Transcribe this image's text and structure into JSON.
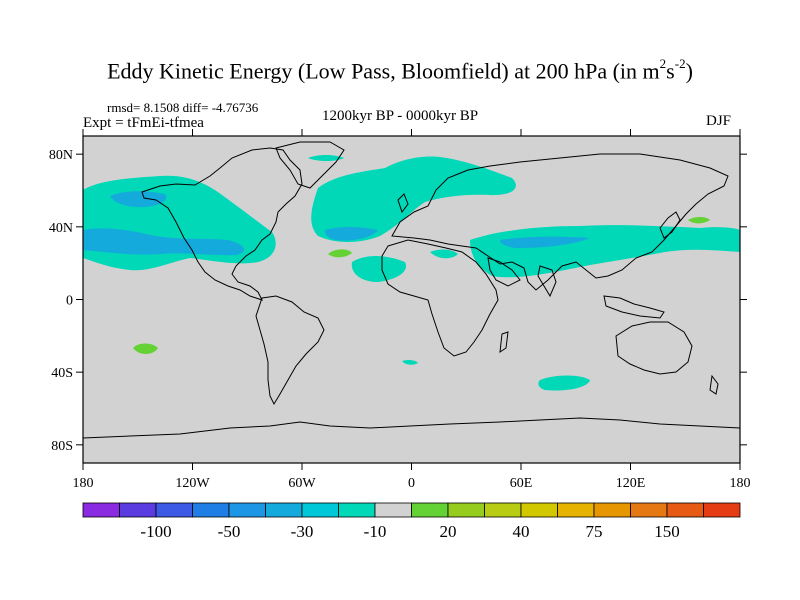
{
  "title": {
    "main": "Eddy Kinetic Energy (Low Pass, Bloomfield) at 200 hPa (in m",
    "exp1": "2",
    "mid": "s",
    "exp2": "-2",
    "close": ")"
  },
  "stats": "rmsd= 8.1508 diff= -4.76736",
  "experiment": "Expt = tFmEi-tfmea",
  "period": "1200kyr BP - 0000kyr BP",
  "season": "DJF",
  "map": {
    "background_color": "#d2d2d2",
    "lon_ticks": [
      {
        "lon": -180,
        "label": "180"
      },
      {
        "lon": -120,
        "label": "120W"
      },
      {
        "lon": -60,
        "label": "60W"
      },
      {
        "lon": 0,
        "label": "0"
      },
      {
        "lon": 60,
        "label": "60E"
      },
      {
        "lon": 120,
        "label": "120E"
      },
      {
        "lon": 180,
        "label": "180"
      }
    ],
    "lat_ticks": [
      {
        "lat": 80,
        "label": "80N"
      },
      {
        "lat": 40,
        "label": "40N"
      },
      {
        "lat": 0,
        "label": "0"
      },
      {
        "lat": -40,
        "label": "40S"
      },
      {
        "lat": -80,
        "label": "80S"
      }
    ]
  },
  "colorbar": {
    "colors": [
      "#8a2be2",
      "#5a3ce0",
      "#3c5ae6",
      "#1e7ee6",
      "#1e96e6",
      "#14aadc",
      "#00c8d8",
      "#00d8b8",
      "#d2d2d2",
      "#64d234",
      "#96cc1e",
      "#b8cc14",
      "#d2c800",
      "#e6b400",
      "#e69600",
      "#e67814",
      "#e65a14",
      "#e63c14"
    ],
    "labels": [
      {
        "boundary": 2,
        "text": "-100"
      },
      {
        "boundary": 4,
        "text": "-50"
      },
      {
        "boundary": 6,
        "text": "-30"
      },
      {
        "boundary": 8,
        "text": "-10"
      },
      {
        "boundary": 10,
        "text": "20"
      },
      {
        "boundary": 12,
        "text": "40"
      },
      {
        "boundary": 14,
        "text": "75"
      },
      {
        "boundary": 16,
        "text": "150"
      }
    ]
  }
}
